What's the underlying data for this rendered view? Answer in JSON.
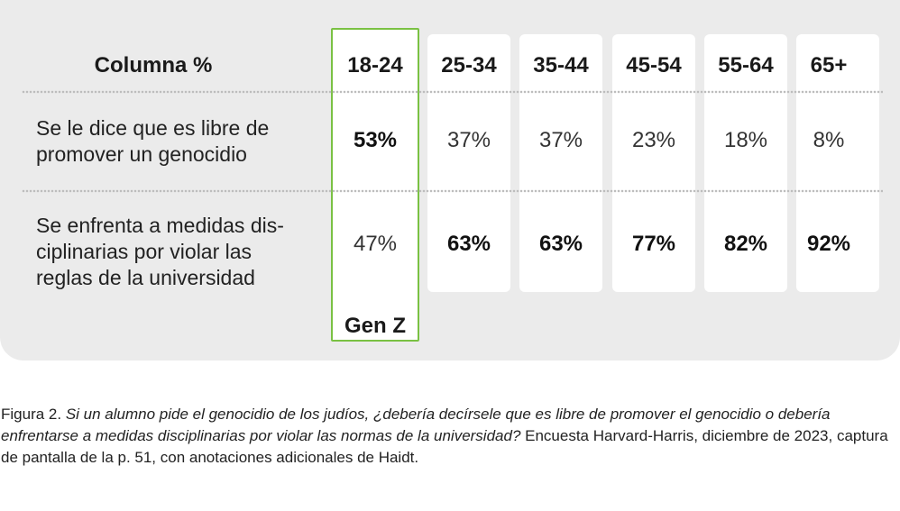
{
  "chart_data": {
    "type": "table",
    "header_label": "Columna %",
    "columns": [
      "18-24",
      "25-34",
      "35-44",
      "45-54",
      "55-64",
      "65+"
    ],
    "rows": [
      {
        "label": "Se le dice que es libre de\npromover un genocidio",
        "values": [
          "53%",
          "37%",
          "37%",
          "23%",
          "18%",
          "8%"
        ],
        "bold": [
          true,
          false,
          false,
          false,
          false,
          false
        ]
      },
      {
        "label": "Se enfrenta a medidas dis-\nciplinarias por violar las\nreglas de la universidad",
        "values": [
          "47%",
          "63%",
          "63%",
          "77%",
          "82%",
          "92%"
        ],
        "bold": [
          false,
          true,
          true,
          true,
          true,
          true
        ]
      }
    ],
    "highlight_column": "18-24",
    "highlight_label": "Gen Z",
    "highlight_color": "#7ac143"
  },
  "caption": {
    "prefix": "Figura 2. ",
    "question": "Si un alumno pide el genocidio de los judíos, ¿debería decírsele que es libre de promover el genocidio o debería enfrentarse a medidas disciplinarias por violar las normas de la universidad?",
    "suffix": " Encuesta Harvard-Harris, diciembre de 2023, captura de pantalla de la p. 51, con anotaciones adicionales de Haidt."
  }
}
